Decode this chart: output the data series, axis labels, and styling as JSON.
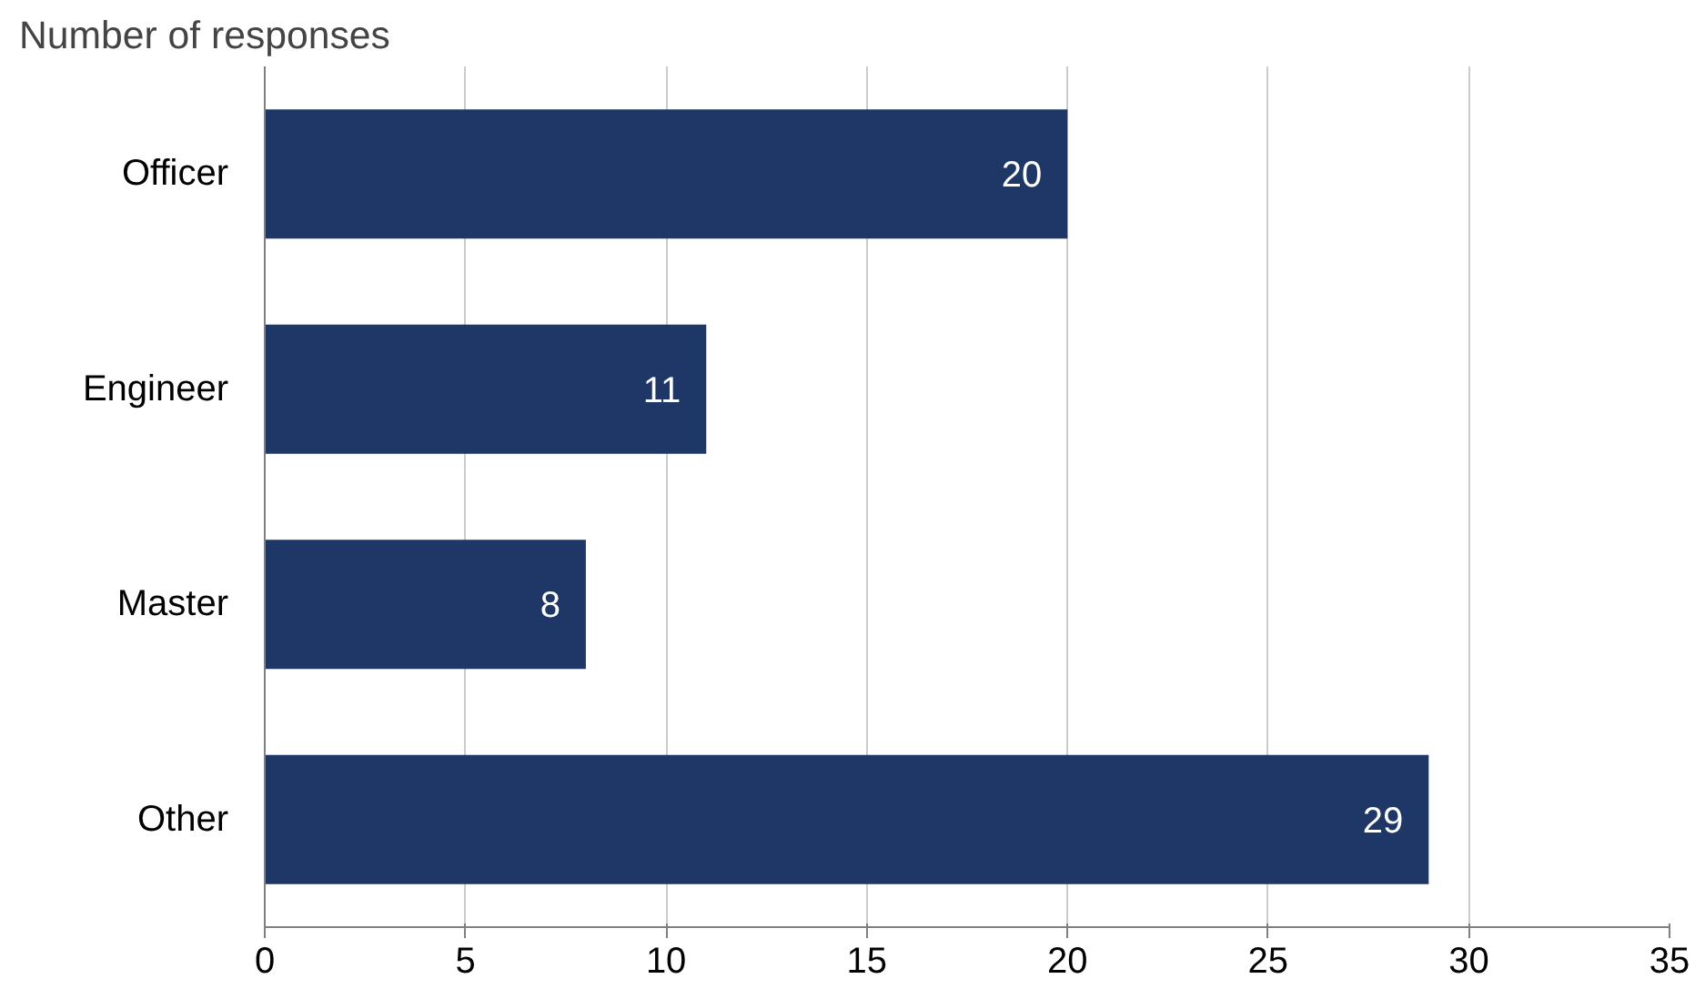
{
  "chart_data": {
    "type": "bar",
    "orientation": "horizontal",
    "title": "Number of responses",
    "categories": [
      "Officer",
      "Engineer",
      "Master",
      "Other"
    ],
    "values": [
      20,
      11,
      8,
      29
    ],
    "color": "#1f3766",
    "xlim": [
      0,
      35
    ],
    "xticks": [
      0,
      5,
      10,
      15,
      20,
      25,
      30,
      35
    ],
    "grid": "x",
    "data_labels": true
  }
}
